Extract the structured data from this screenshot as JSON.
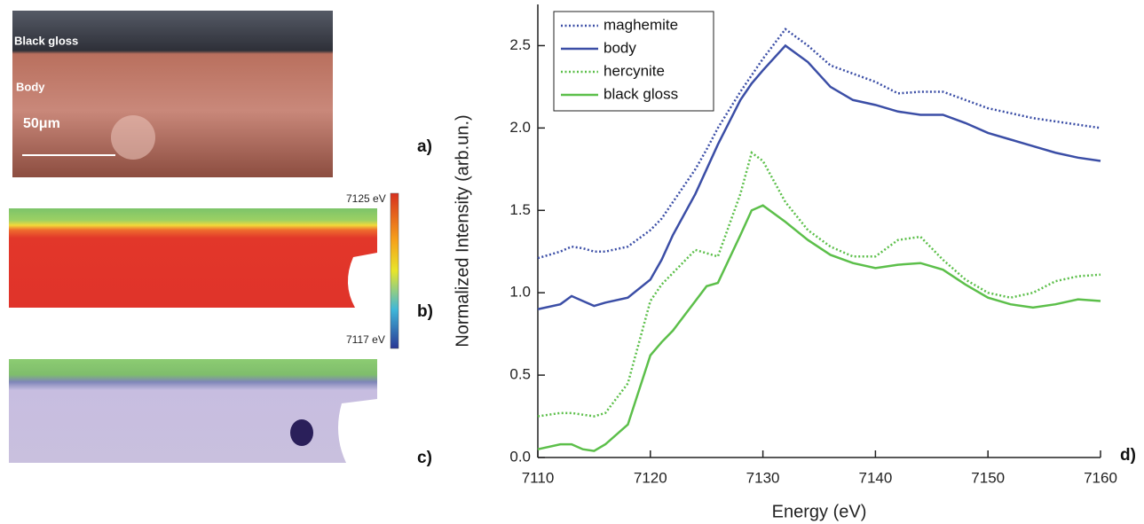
{
  "panels": {
    "a": {
      "label": "a)",
      "layer_top": "Black gloss",
      "layer_body": "Body",
      "scale": "50μm"
    },
    "b": {
      "label": "b)",
      "colorbar_max": "7125 eV",
      "colorbar_min": "7117 eV"
    },
    "c": {
      "label": "c)"
    },
    "d": {
      "label": "d)"
    }
  },
  "chart_data": {
    "type": "line",
    "x_label": "Energy (eV)",
    "y_label": "Normalized Intensity (arb.un.)",
    "x": [
      7110,
      7112,
      7113,
      7114,
      7115,
      7116,
      7118,
      7120,
      7121,
      7122,
      7124,
      7125,
      7126,
      7128,
      7129,
      7130,
      7132,
      7134,
      7136,
      7138,
      7140,
      7142,
      7144,
      7146,
      7148,
      7150,
      7152,
      7154,
      7156,
      7158,
      7160
    ],
    "series": [
      {
        "name": "maghemite",
        "color": "#3b4ea6",
        "dash": "dotted",
        "values": [
          1.21,
          1.25,
          1.28,
          1.27,
          1.25,
          1.25,
          1.28,
          1.38,
          1.45,
          1.55,
          1.75,
          1.87,
          2.0,
          2.22,
          2.32,
          2.42,
          2.6,
          2.5,
          2.38,
          2.33,
          2.28,
          2.21,
          2.22,
          2.22,
          2.17,
          2.12,
          2.09,
          2.06,
          2.04,
          2.02,
          2.0
        ]
      },
      {
        "name": "body",
        "color": "#3b4ea6",
        "dash": "solid",
        "values": [
          0.9,
          0.93,
          0.98,
          0.95,
          0.92,
          0.94,
          0.97,
          1.08,
          1.2,
          1.35,
          1.6,
          1.75,
          1.9,
          2.17,
          2.27,
          2.35,
          2.5,
          2.4,
          2.25,
          2.17,
          2.14,
          2.1,
          2.08,
          2.08,
          2.03,
          1.97,
          1.93,
          1.89,
          1.85,
          1.82,
          1.8
        ]
      },
      {
        "name": "hercynite",
        "color": "#5cbf4a",
        "dash": "dotted",
        "values": [
          0.25,
          0.27,
          0.27,
          0.26,
          0.25,
          0.27,
          0.45,
          0.95,
          1.05,
          1.12,
          1.26,
          1.24,
          1.22,
          1.6,
          1.85,
          1.8,
          1.55,
          1.38,
          1.28,
          1.22,
          1.22,
          1.32,
          1.34,
          1.2,
          1.08,
          1.0,
          0.97,
          1.0,
          1.07,
          1.1,
          1.11
        ]
      },
      {
        "name": "black gloss",
        "color": "#5cbf4a",
        "dash": "solid",
        "values": [
          0.05,
          0.08,
          0.08,
          0.05,
          0.04,
          0.08,
          0.2,
          0.62,
          0.7,
          0.77,
          0.95,
          1.04,
          1.06,
          1.35,
          1.5,
          1.53,
          1.43,
          1.32,
          1.23,
          1.18,
          1.15,
          1.17,
          1.18,
          1.14,
          1.05,
          0.97,
          0.93,
          0.91,
          0.93,
          0.96,
          0.95
        ]
      }
    ],
    "xlim": [
      7110,
      7160
    ],
    "xticks": [
      7110,
      7120,
      7130,
      7140,
      7150,
      7160
    ],
    "ylim": [
      0,
      2.75
    ],
    "yticks": [
      {
        "value": 0,
        "label": "0.0"
      },
      0.5,
      {
        "value": 1,
        "label": "1.0"
      },
      1.5,
      {
        "value": 2,
        "label": "2.0"
      },
      2.5
    ],
    "legend": "upper-left"
  }
}
